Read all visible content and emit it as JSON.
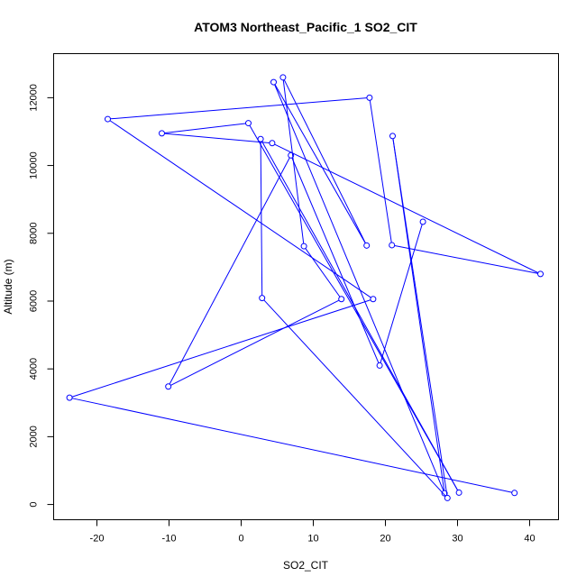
{
  "chart_data": {
    "type": "line",
    "title": "ATOM3 Northeast_Pacific_1 SO2_CIT",
    "xlabel": "SO2_CIT",
    "ylabel": "Altitude (m)",
    "xlim": [
      -26,
      44
    ],
    "ylim": [
      -450,
      13300
    ],
    "xticks": [
      -20,
      -10,
      0,
      10,
      20,
      30,
      40
    ],
    "yticks": [
      0,
      2000,
      4000,
      6000,
      8000,
      10000,
      12000
    ],
    "grid": false,
    "markers": "open-circle",
    "line_color": "#0000ff",
    "series": [
      {
        "points": [
          [
            37.9,
            340
          ],
          [
            -23.8,
            3150
          ],
          [
            18.3,
            6060
          ],
          [
            -18.5,
            11370
          ],
          [
            17.8,
            12000
          ],
          [
            20.9,
            7650
          ],
          [
            41.5,
            6800
          ],
          [
            4.3,
            10660
          ],
          [
            -11.0,
            10950
          ],
          [
            1.0,
            11250
          ],
          [
            30.2,
            350
          ],
          [
            2.7,
            10780
          ],
          [
            2.9,
            6090
          ],
          [
            28.6,
            190
          ],
          [
            21.0,
            10870
          ],
          [
            28.2,
            330
          ],
          [
            4.5,
            12460
          ],
          [
            17.4,
            7640
          ],
          [
            5.8,
            12600
          ],
          [
            8.7,
            7620
          ],
          [
            13.9,
            6060
          ],
          [
            -10.1,
            3480
          ],
          [
            6.9,
            10300
          ],
          [
            19.2,
            4100
          ],
          [
            25.2,
            8340
          ]
        ]
      }
    ]
  }
}
